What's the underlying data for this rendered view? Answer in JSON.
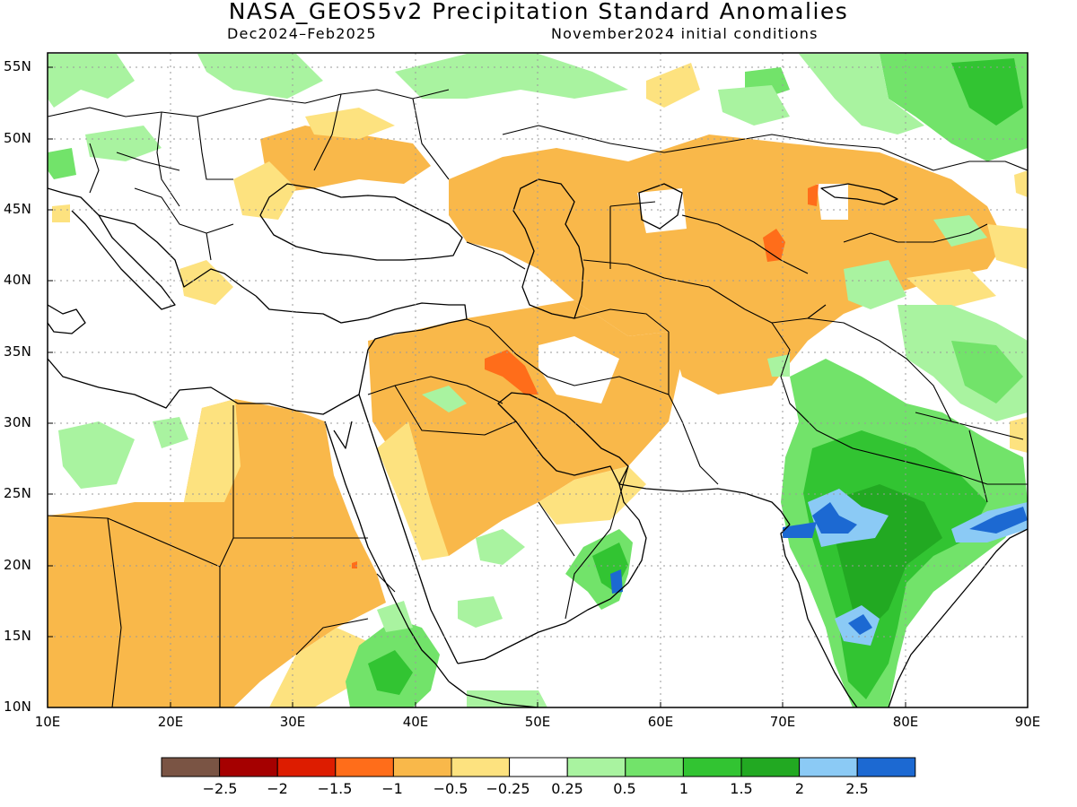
{
  "title": "NASA_GEOS5v2 Precipitation Standard Anomalies",
  "subtitle_left": "Dec2024–Feb2025",
  "subtitle_right": "November2024 initial conditions",
  "lat_labels": [
    "55N",
    "50N",
    "45N",
    "40N",
    "35N",
    "30N",
    "25N",
    "20N",
    "15N",
    "10N"
  ],
  "lon_labels": [
    "10E",
    "20E",
    "30E",
    "40E",
    "50E",
    "60E",
    "70E",
    "80E",
    "90E"
  ],
  "colorbar": {
    "labels": [
      "−2.5",
      "−2",
      "−1.5",
      "−1",
      "−0.5",
      "−0.25",
      "0.25",
      "0.5",
      "1",
      "1.5",
      "2",
      "2.5"
    ],
    "colors": [
      "#7a5444",
      "#a50000",
      "#dd1c00",
      "#ff6d1a",
      "#f9b84a",
      "#fde27f",
      "#ffffff",
      "#a9f3a0",
      "#72e36a",
      "#32c432",
      "#22a922",
      "#8bcaf5",
      "#1c69d2"
    ]
  },
  "palette": {
    "frame": "#000000",
    "grid": "#9a9a9a",
    "coast": "#000000"
  }
}
